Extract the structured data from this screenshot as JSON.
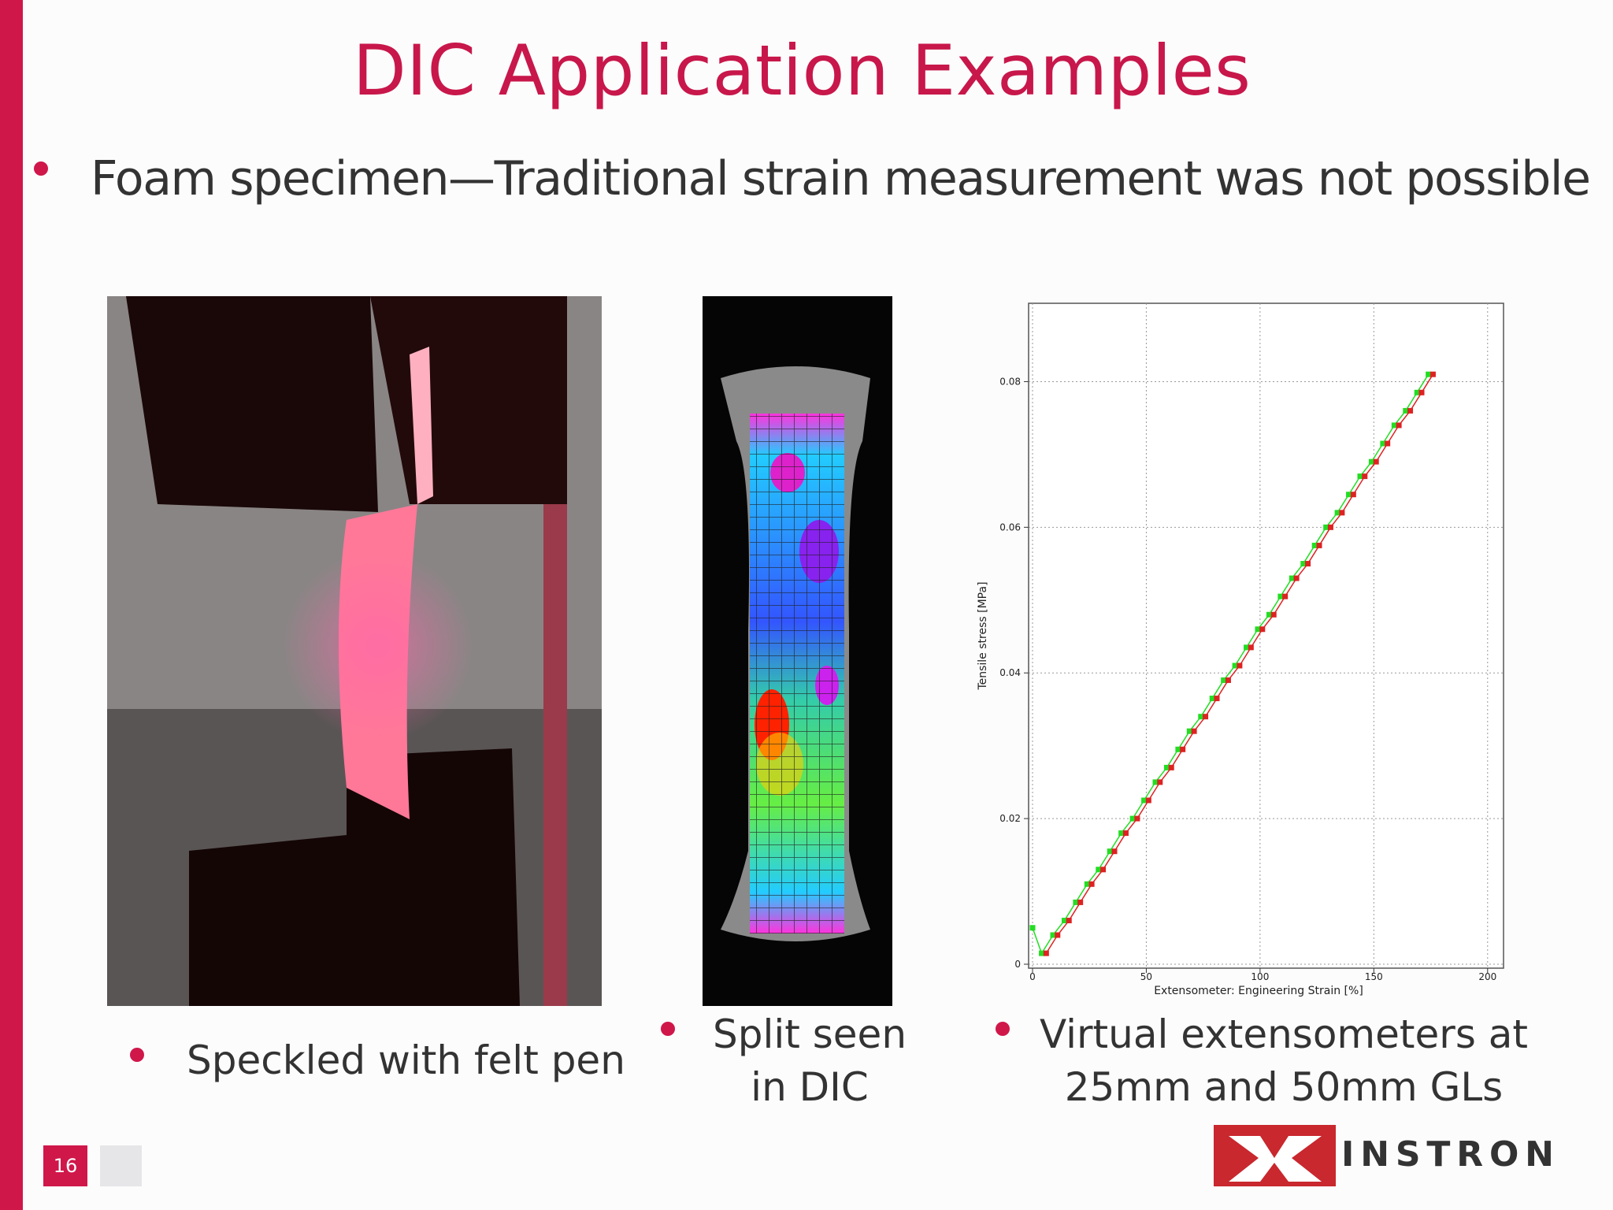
{
  "header": {
    "title": "DIC Application Examples"
  },
  "bullet": "Foam specimen—Traditional strain measurement was not possible",
  "captions": [
    [
      "Speckled with felt pen"
    ],
    [
      "Split seen",
      "in DIC"
    ],
    [
      "Virtual extensometers at",
      "25mm and 50mm GLs"
    ]
  ],
  "chart_data": {
    "type": "line",
    "x_label": "Extensometer: Engineering Strain [%]",
    "y_label": "Tensile stress [MPa]",
    "xlim": [
      0,
      207
    ],
    "ylim": [
      0,
      0.09
    ],
    "xticks": [
      0,
      50,
      100,
      150,
      200
    ],
    "yticks": [
      0,
      0.02,
      0.04,
      0.06,
      0.08
    ],
    "grid": true,
    "series": [
      {
        "color": "#22dd22",
        "x": [
          0,
          4,
          9,
          14,
          19,
          24,
          29,
          34,
          39,
          44,
          49,
          54,
          59,
          64,
          69,
          74,
          79,
          84,
          89,
          94,
          99,
          104,
          109,
          114,
          119,
          124,
          129,
          134,
          139,
          144,
          149,
          154,
          159,
          164,
          169,
          174
        ],
        "values": [
          0.005,
          0.0015,
          0.004,
          0.006,
          0.0085,
          0.011,
          0.013,
          0.0155,
          0.018,
          0.02,
          0.0225,
          0.025,
          0.027,
          0.0295,
          0.032,
          0.034,
          0.0365,
          0.039,
          0.041,
          0.0435,
          0.046,
          0.048,
          0.0505,
          0.053,
          0.055,
          0.0575,
          0.06,
          0.062,
          0.0645,
          0.067,
          0.069,
          0.0715,
          0.074,
          0.076,
          0.0785,
          0.081
        ]
      },
      {
        "color": "#dd2222",
        "x": [
          6,
          11,
          16,
          21,
          26,
          31,
          36,
          41,
          46,
          51,
          56,
          61,
          66,
          71,
          76,
          81,
          86,
          91,
          96,
          101,
          106,
          111,
          116,
          121,
          126,
          131,
          136,
          141,
          146,
          151,
          156,
          161,
          166,
          171,
          176
        ],
        "values": [
          0.0015,
          0.004,
          0.006,
          0.0085,
          0.011,
          0.013,
          0.0155,
          0.018,
          0.02,
          0.0225,
          0.025,
          0.027,
          0.0295,
          0.032,
          0.034,
          0.0365,
          0.039,
          0.041,
          0.0435,
          0.046,
          0.048,
          0.0505,
          0.053,
          0.055,
          0.0575,
          0.06,
          0.062,
          0.0645,
          0.067,
          0.069,
          0.0715,
          0.074,
          0.076,
          0.0785,
          0.081
        ]
      }
    ]
  },
  "footer": {
    "slide_number": 16,
    "logo": "INSTRON"
  }
}
